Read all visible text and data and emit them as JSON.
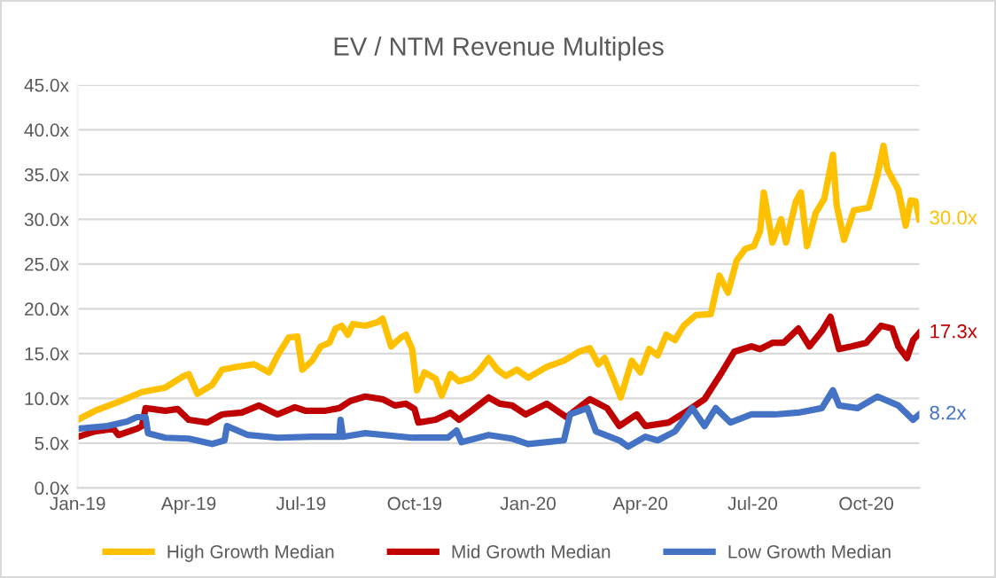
{
  "chart_data": {
    "type": "line",
    "title": "EV / NTM Revenue Multiples",
    "xlim": [
      "2019-01-01",
      "2020-11-13"
    ],
    "xticks": [
      {
        "value": "2019-01-01",
        "label": "Jan-19"
      },
      {
        "value": "2019-04-01",
        "label": "Apr-19"
      },
      {
        "value": "2019-07-01",
        "label": "Jul-19"
      },
      {
        "value": "2019-10-01",
        "label": "Oct-19"
      },
      {
        "value": "2020-01-01",
        "label": "Jan-20"
      },
      {
        "value": "2020-04-01",
        "label": "Apr-20"
      },
      {
        "value": "2020-07-01",
        "label": "Jul-20"
      },
      {
        "value": "2020-10-01",
        "label": "Oct-20"
      }
    ],
    "ylim": [
      0,
      45
    ],
    "yticks": [
      {
        "value": 0,
        "label": "0.0x"
      },
      {
        "value": 5,
        "label": "5.0x"
      },
      {
        "value": 10,
        "label": "10.0x"
      },
      {
        "value": 15,
        "label": "15.0x"
      },
      {
        "value": 20,
        "label": "20.0x"
      },
      {
        "value": 25,
        "label": "25.0x"
      },
      {
        "value": 30,
        "label": "30.0x"
      },
      {
        "value": 35,
        "label": "35.0x"
      },
      {
        "value": 40,
        "label": "40.0x"
      },
      {
        "value": 45,
        "label": "45.0x"
      }
    ],
    "grid": "y",
    "legend": "bottom",
    "marker": "none",
    "line_style": "solid",
    "series": [
      {
        "name": "High Growth Median",
        "color": "#ffc000",
        "x": [
          "2019-01-01",
          "2019-01-15",
          "2019-02-03",
          "2019-02-22",
          "2019-03-13",
          "2019-03-28",
          "2019-04-01",
          "2019-04-08",
          "2019-04-20",
          "2019-04-28",
          "2019-05-09",
          "2019-05-24",
          "2019-06-05",
          "2019-06-12",
          "2019-06-21",
          "2019-06-28",
          "2019-07-02",
          "2019-07-10",
          "2019-07-17",
          "2019-07-24",
          "2019-07-29",
          "2019-08-03",
          "2019-08-08",
          "2019-08-12",
          "2019-08-22",
          "2019-09-01",
          "2019-09-05",
          "2019-09-12",
          "2019-09-20",
          "2019-09-24",
          "2019-09-29",
          "2019-10-03",
          "2019-10-09",
          "2019-10-18",
          "2019-10-23",
          "2019-10-30",
          "2019-11-06",
          "2019-11-16",
          "2019-11-23",
          "2019-11-30",
          "2019-12-07",
          "2019-12-14",
          "2019-12-23",
          "2020-01-01",
          "2020-01-16",
          "2020-01-30",
          "2020-02-11",
          "2020-02-20",
          "2020-02-27",
          "2020-03-03",
          "2020-03-10",
          "2020-03-16",
          "2020-03-25",
          "2020-04-01",
          "2020-04-08",
          "2020-04-15",
          "2020-04-22",
          "2020-04-29",
          "2020-05-06",
          "2020-05-16",
          "2020-05-28",
          "2020-06-04",
          "2020-06-11",
          "2020-06-18",
          "2020-06-25",
          "2020-07-02",
          "2020-07-07",
          "2020-07-10",
          "2020-07-17",
          "2020-07-24",
          "2020-07-28",
          "2020-08-05",
          "2020-08-09",
          "2020-08-14",
          "2020-08-21",
          "2020-08-28",
          "2020-09-04",
          "2020-09-07",
          "2020-09-13",
          "2020-09-21",
          "2020-10-03",
          "2020-10-10",
          "2020-10-15",
          "2020-10-18",
          "2020-10-27",
          "2020-11-02",
          "2020-11-06",
          "2020-11-10",
          "2020-11-13"
        ],
        "values": [
          7.6,
          8.6,
          9.6,
          10.7,
          11.2,
          12.5,
          12.7,
          10.5,
          11.5,
          13.2,
          13.5,
          13.8,
          12.9,
          14.8,
          16.8,
          16.9,
          13.2,
          14.2,
          15.8,
          16.2,
          17.8,
          18.1,
          17.1,
          18.3,
          18.1,
          18.5,
          18.9,
          15.8,
          16.8,
          17.1,
          15.5,
          10.9,
          12.9,
          12.2,
          10.3,
          12.7,
          11.9,
          12.3,
          13.2,
          14.5,
          13.2,
          12.5,
          13.2,
          12.3,
          13.5,
          14.2,
          15.2,
          15.6,
          13.8,
          14.5,
          12.2,
          10.1,
          14.2,
          12.9,
          15.5,
          14.8,
          17.1,
          16.5,
          18.1,
          19.3,
          19.4,
          23.7,
          21.8,
          25.4,
          26.7,
          27.0,
          28.7,
          33.0,
          27.4,
          30.0,
          27.4,
          32.0,
          33.0,
          27.0,
          30.7,
          32.3,
          37.2,
          31.6,
          27.7,
          31.0,
          31.3,
          34.9,
          38.2,
          35.6,
          33.3,
          29.3,
          32.1,
          32.0,
          30.0
        ]
      },
      {
        "name": "Mid Growth Median",
        "color": "#c00000",
        "x": [
          "2019-01-01",
          "2019-01-15",
          "2019-01-30",
          "2019-02-03",
          "2019-02-18",
          "2019-02-22",
          "2019-02-25",
          "2019-03-13",
          "2019-03-23",
          "2019-04-01",
          "2019-04-16",
          "2019-04-28",
          "2019-05-14",
          "2019-05-28",
          "2019-06-12",
          "2019-06-26",
          "2019-07-05",
          "2019-07-20",
          "2019-08-01",
          "2019-08-10",
          "2019-08-22",
          "2019-09-05",
          "2019-09-15",
          "2019-09-24",
          "2019-10-01",
          "2019-10-04",
          "2019-10-18",
          "2019-10-30",
          "2019-11-06",
          "2019-11-16",
          "2019-11-30",
          "2019-12-09",
          "2019-12-19",
          "2019-12-30",
          "2020-01-16",
          "2020-02-01",
          "2020-02-20",
          "2020-03-05",
          "2020-03-15",
          "2020-03-29",
          "2020-04-05",
          "2020-04-24",
          "2020-05-09",
          "2020-05-23",
          "2020-06-06",
          "2020-06-16",
          "2020-06-30",
          "2020-07-07",
          "2020-07-17",
          "2020-07-26",
          "2020-08-07",
          "2020-08-16",
          "2020-08-26",
          "2020-09-02",
          "2020-09-09",
          "2020-09-19",
          "2020-10-01",
          "2020-10-13",
          "2020-10-22",
          "2020-10-27",
          "2020-11-03",
          "2020-11-08",
          "2020-11-13"
        ],
        "values": [
          5.7,
          6.3,
          6.6,
          5.9,
          6.6,
          6.9,
          8.9,
          8.6,
          8.8,
          7.6,
          7.3,
          8.2,
          8.4,
          9.2,
          8.2,
          9.0,
          8.6,
          8.6,
          8.9,
          9.7,
          10.2,
          9.9,
          9.2,
          9.4,
          8.8,
          7.3,
          7.6,
          8.4,
          7.6,
          8.6,
          10.1,
          9.4,
          9.2,
          8.2,
          9.4,
          7.9,
          9.9,
          8.9,
          6.9,
          8.2,
          6.9,
          7.3,
          8.6,
          9.9,
          12.9,
          15.2,
          15.8,
          15.5,
          16.2,
          16.2,
          17.8,
          15.8,
          17.5,
          19.1,
          15.5,
          15.8,
          16.2,
          18.1,
          17.8,
          15.8,
          14.5,
          16.5,
          17.3
        ]
      },
      {
        "name": "Low Growth Median",
        "color": "#4472c4",
        "x": [
          "2019-01-01",
          "2019-01-25",
          "2019-02-10",
          "2019-02-18",
          "2019-02-25",
          "2019-02-27",
          "2019-03-13",
          "2019-04-01",
          "2019-04-20",
          "2019-04-30",
          "2019-05-02",
          "2019-05-19",
          "2019-06-12",
          "2019-07-10",
          "2019-08-01",
          "2019-08-02",
          "2019-08-04",
          "2019-08-22",
          "2019-09-29",
          "2019-10-28",
          "2019-11-04",
          "2019-11-08",
          "2019-11-30",
          "2019-12-19",
          "2020-01-01",
          "2020-01-30",
          "2020-02-04",
          "2020-02-18",
          "2020-02-25",
          "2020-03-15",
          "2020-03-22",
          "2020-04-05",
          "2020-04-15",
          "2020-04-29",
          "2020-05-13",
          "2020-05-23",
          "2020-06-01",
          "2020-06-13",
          "2020-06-30",
          "2020-07-19",
          "2020-08-07",
          "2020-08-26",
          "2020-09-04",
          "2020-09-09",
          "2020-09-24",
          "2020-10-10",
          "2020-10-27",
          "2020-11-08",
          "2020-11-13"
        ],
        "values": [
          6.6,
          6.9,
          7.4,
          7.9,
          7.9,
          6.1,
          5.6,
          5.5,
          4.9,
          5.3,
          6.9,
          5.9,
          5.6,
          5.7,
          5.7,
          7.6,
          5.7,
          6.1,
          5.6,
          5.6,
          6.4,
          5.1,
          5.9,
          5.5,
          4.9,
          5.3,
          8.2,
          8.9,
          6.3,
          5.3,
          4.6,
          5.7,
          5.3,
          6.3,
          8.9,
          6.9,
          8.9,
          7.3,
          8.2,
          8.2,
          8.4,
          8.9,
          10.9,
          9.2,
          8.9,
          10.2,
          9.2,
          7.6,
          8.2
        ]
      }
    ],
    "annotations": [
      {
        "text": "30.0x",
        "x": "2020-11-13",
        "y": 30.0
      },
      {
        "text": "17.3x",
        "x": "2020-11-13",
        "y": 17.3
      },
      {
        "text": "8.2x",
        "x": "2020-11-13",
        "y": 8.2
      }
    ]
  }
}
